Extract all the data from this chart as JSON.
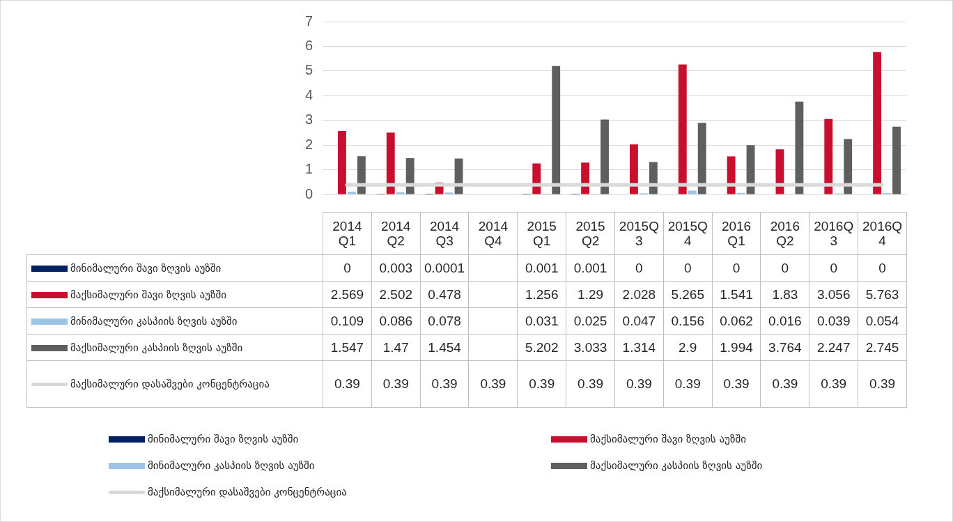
{
  "chart_data": {
    "type": "bar",
    "categories": [
      "2014 Q1",
      "2014 Q2",
      "2014 Q3",
      "2014 Q4",
      "2015 Q1",
      "2015 Q2",
      "2015Q3",
      "2015Q4",
      "2016 Q1",
      "2016 Q2",
      "2016Q3",
      "2016Q4"
    ],
    "series": [
      {
        "name": "მინიმალური შავი ზღვის აუზში",
        "color": "#002060",
        "values": [
          0,
          0.003,
          0.0001,
          null,
          0.001,
          0.001,
          0,
          0,
          0,
          0,
          0,
          0
        ]
      },
      {
        "name": "მაქსიმალური შავი ზღვის აუზში",
        "color": "#c8102e",
        "values": [
          2.569,
          2.502,
          0.478,
          null,
          1.256,
          1.29,
          2.028,
          5.265,
          1.541,
          1.83,
          3.056,
          5.763
        ]
      },
      {
        "name": "მინიმალური კასპიის ზღვის აუზში",
        "color": "#9dc3e6",
        "values": [
          0.109,
          0.086,
          0.078,
          null,
          0.031,
          0.025,
          0.047,
          0.156,
          0.062,
          0.016,
          0.039,
          0.054
        ]
      },
      {
        "name": "მაქსიმალური კასპიის ზღვის აუზში",
        "color": "#5f5f5f",
        "values": [
          1.547,
          1.47,
          1.454,
          null,
          5.202,
          3.033,
          1.314,
          2.9,
          1.994,
          3.764,
          2.247,
          2.745
        ]
      },
      {
        "name": "მაქსიმალური დასაშვები კონცენტრაცია",
        "color": "#d9d9d9",
        "type": "line",
        "marker": "none",
        "values": [
          0.39,
          0.39,
          0.39,
          0.39,
          0.39,
          0.39,
          0.39,
          0.39,
          0.39,
          0.39,
          0.39,
          0.39
        ]
      }
    ],
    "ylim": [
      0,
      7
    ],
    "yticks": [
      0,
      1,
      2,
      3,
      4,
      5,
      6,
      7
    ],
    "grid": "y",
    "legend": "bottom",
    "data_labels": true
  }
}
